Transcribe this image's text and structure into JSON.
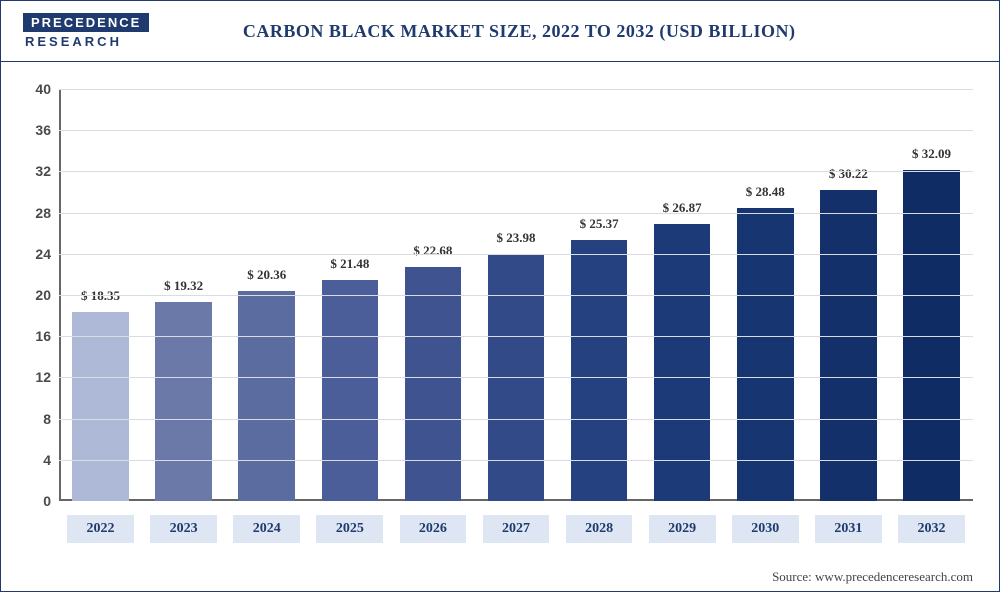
{
  "logo": {
    "top": "PRECEDENCE",
    "bottom": "RESEARCH"
  },
  "chart": {
    "type": "bar",
    "title": "CARBON BLACK MARKET SIZE, 2022 TO 2032 (USD BILLION)",
    "title_fontsize": 18,
    "title_color": "#1f3a6e",
    "categories": [
      "2022",
      "2023",
      "2024",
      "2025",
      "2026",
      "2027",
      "2028",
      "2029",
      "2030",
      "2031",
      "2032"
    ],
    "values": [
      18.35,
      19.32,
      20.36,
      21.48,
      22.68,
      23.98,
      25.37,
      26.87,
      28.48,
      30.22,
      32.09
    ],
    "value_labels": [
      "$ 18.35",
      "$ 19.32",
      "$ 20.36",
      "$ 21.48",
      "$ 22.68",
      "$ 23.98",
      "$ 25.37",
      "$ 26.87",
      "$ 28.48",
      "$ 30.22",
      "$ 32.09"
    ],
    "bar_colors": [
      "#aeb9d8",
      "#6a79a8",
      "#5b6ca0",
      "#4c5e99",
      "#3f5391",
      "#324a88",
      "#26417f",
      "#1d3a78",
      "#173571",
      "#13306b",
      "#102c65"
    ],
    "ylim": [
      0,
      40
    ],
    "yticks": [
      0,
      4,
      8,
      12,
      16,
      20,
      24,
      28,
      32,
      36,
      40
    ],
    "grid_color": "#d9dde3",
    "axis_color": "#666666",
    "background_color": "#ffffff",
    "label_fontsize": 14,
    "value_label_fontsize": 13,
    "category_box_bg": "#dfe6f3",
    "category_box_color": "#1f3a6e",
    "bar_width_ratio": 0.68
  },
  "source": "Source: www.precedenceresearch.com"
}
